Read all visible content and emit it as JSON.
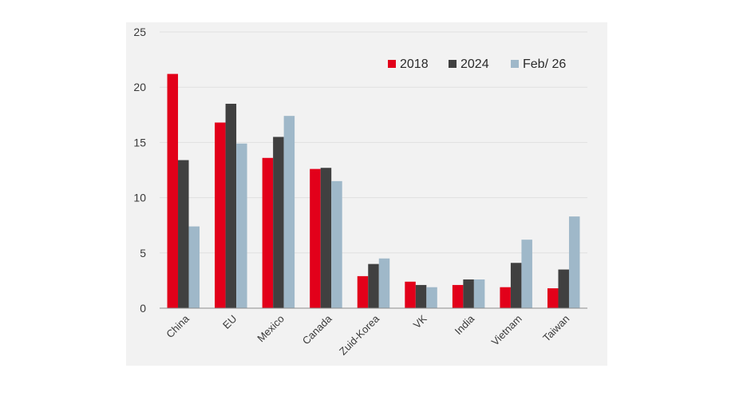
{
  "chart_data": {
    "type": "bar",
    "categories": [
      "China",
      "EU",
      "Mexico",
      "Canada",
      "Zuid-Korea",
      "VK",
      "India",
      "Vietnam",
      "Taiwan"
    ],
    "series": [
      {
        "name": "2018",
        "color": "#e2001a",
        "values": [
          21.2,
          16.8,
          13.6,
          12.6,
          2.9,
          2.4,
          2.1,
          1.9,
          1.8
        ]
      },
      {
        "name": "2024",
        "color": "#404040",
        "values": [
          13.4,
          18.5,
          15.5,
          12.7,
          4.0,
          2.1,
          2.6,
          4.1,
          3.5
        ]
      },
      {
        "name": "Feb/ 26",
        "color": "#9fb8c9",
        "values": [
          7.4,
          14.9,
          17.4,
          11.5,
          4.5,
          1.9,
          2.6,
          6.2,
          8.3
        ]
      }
    ],
    "y_ticks": [
      "0",
      "5",
      "10",
      "15",
      "20",
      "25"
    ],
    "ylim": [
      0,
      25
    ],
    "grid": true,
    "legend_position": "top-right"
  }
}
